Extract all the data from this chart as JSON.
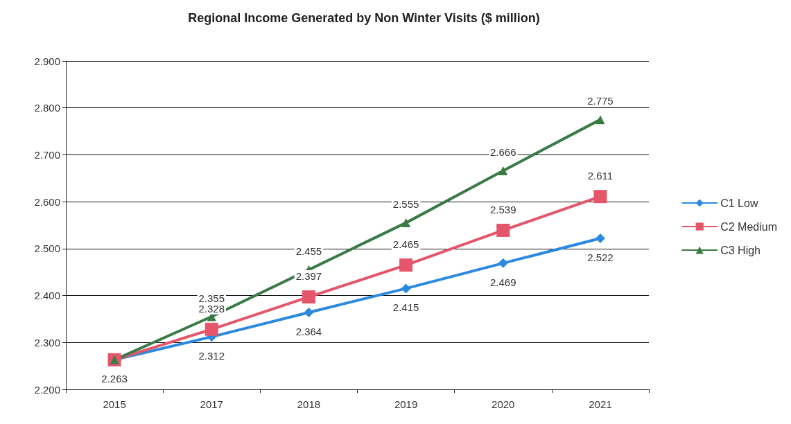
{
  "chart_data": {
    "type": "line",
    "title": "Regional Income Generated by Non Winter Visits ($ million)",
    "categories": [
      "2015",
      "2017",
      "2018",
      "2019",
      "2020",
      "2021"
    ],
    "series": [
      {
        "name": "C1 Low",
        "color": "#2b8ae0",
        "marker": "diamond",
        "values": [
          2.263,
          2.312,
          2.364,
          2.415,
          2.469,
          2.522
        ],
        "value_labels": [
          "2.263",
          "2.312",
          "2.364",
          "2.415",
          "2.469",
          "2.522"
        ]
      },
      {
        "name": "C2 Medium",
        "color": "#e5566b",
        "marker": "square",
        "values": [
          2.263,
          2.328,
          2.397,
          2.465,
          2.539,
          2.611
        ],
        "value_labels": [
          null,
          "2.328",
          "2.397",
          "2.465",
          "2.539",
          "2.611"
        ]
      },
      {
        "name": "C3 High",
        "color": "#3a7a45",
        "marker": "triangle",
        "values": [
          2.263,
          2.355,
          2.455,
          2.555,
          2.666,
          2.775
        ],
        "value_labels": [
          null,
          "2.355",
          "2.455",
          "2.555",
          "2.666",
          "2.775"
        ]
      }
    ],
    "ylim": [
      2.2,
      2.9
    ],
    "yticks": [
      {
        "value": 2.2,
        "label": "2.200"
      },
      {
        "value": 2.3,
        "label": "2.300"
      },
      {
        "value": 2.4,
        "label": "2.400"
      },
      {
        "value": 2.5,
        "label": "2.500"
      },
      {
        "value": 2.6,
        "label": "2.600"
      },
      {
        "value": 2.7,
        "label": "2.700"
      },
      {
        "value": 2.8,
        "label": "2.800"
      },
      {
        "value": 2.9,
        "label": "2.900"
      }
    ],
    "grid": "y",
    "legend": "right",
    "line_style": "solid"
  }
}
